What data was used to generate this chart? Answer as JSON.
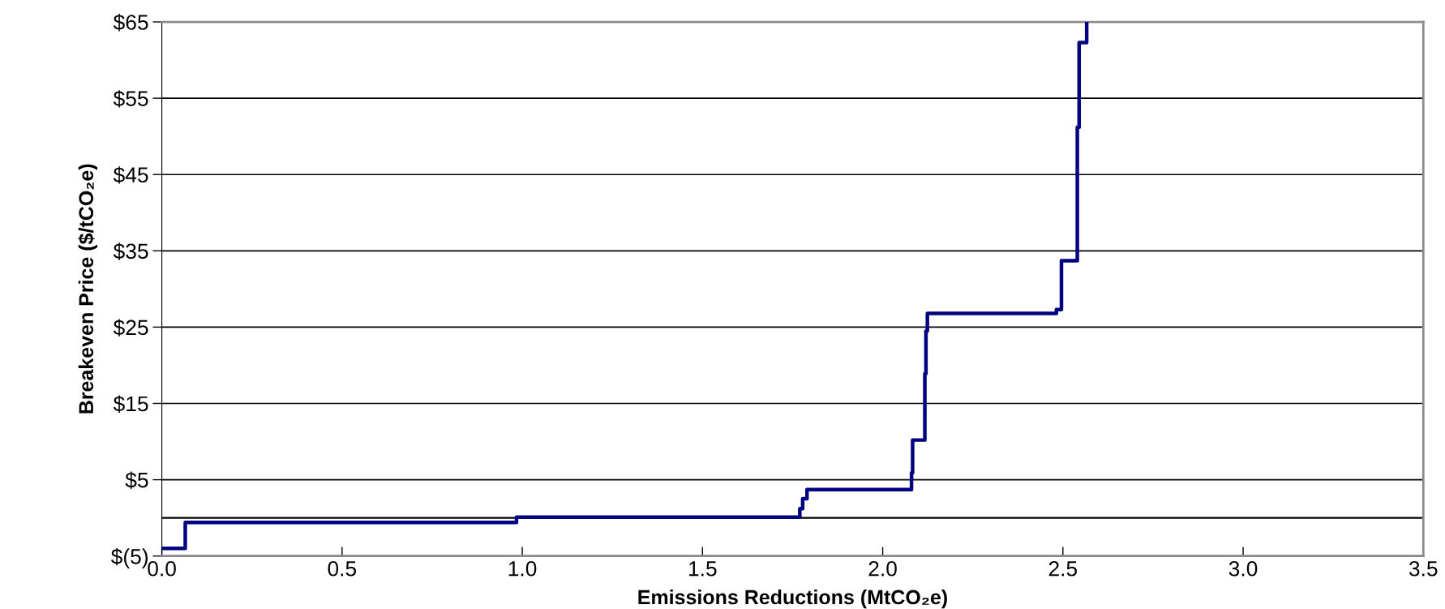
{
  "chart_data": {
    "type": "step",
    "xlabel": "Emissions Reductions (MtCO₂e)",
    "ylabel": "Breakeven Price ($/tCO₂e)",
    "x": [
      0,
      0.065,
      0.984,
      1.77,
      1.778,
      1.79,
      2.08,
      2.083,
      2.117,
      2.12,
      2.124,
      2.482,
      2.496,
      2.54,
      2.545,
      2.566
    ],
    "series": [
      {
        "color": "#000080",
        "values": [
          -4.0,
          -0.6,
          0.1,
          1.2,
          2.5,
          3.7,
          5.9,
          10.2,
          18.9,
          24.5,
          26.8,
          27.3,
          33.7,
          51.2,
          62.3,
          65
        ]
      }
    ],
    "xlim": [
      0,
      3.5
    ],
    "xticks": [
      {
        "value": 0,
        "label": "0.0"
      },
      {
        "value": 0.5,
        "label": "0.5"
      },
      {
        "value": 1,
        "label": "1.0"
      },
      {
        "value": 1.5,
        "label": "1.5"
      },
      {
        "value": 2,
        "label": "2.0"
      },
      {
        "value": 2.5,
        "label": "2.5"
      },
      {
        "value": 3,
        "label": "3.0"
      },
      {
        "value": 3.5,
        "label": "3.5"
      }
    ],
    "ylim": [
      -5,
      65
    ],
    "yticks": [
      {
        "value": -5,
        "label": "$(5)"
      },
      {
        "value": 5,
        "label": "$5"
      },
      {
        "value": 15,
        "label": "$15"
      },
      {
        "value": 25,
        "label": "$25"
      },
      {
        "value": 35,
        "label": "$35"
      },
      {
        "value": 45,
        "label": "$45"
      },
      {
        "value": 55,
        "label": "$55"
      },
      {
        "value": 65,
        "label": "$65"
      }
    ],
    "ref_lines": [
      {
        "axis": "y",
        "value": 0,
        "color": "#000000"
      }
    ],
    "grid": "y",
    "marker": "none",
    "line_style": "solid"
  }
}
